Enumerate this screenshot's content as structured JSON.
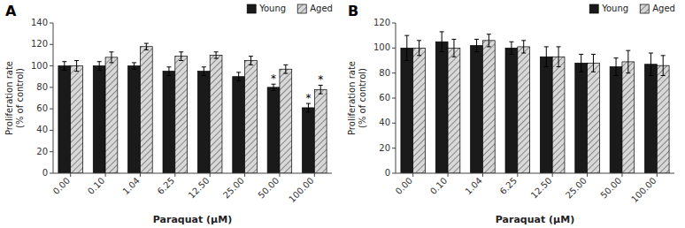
{
  "chart_data": [
    {
      "type": "bar",
      "title": "A",
      "categories": [
        "0.00",
        "0.10",
        "1.04",
        "6.25",
        "12.50",
        "25.00",
        "50.00",
        "100.00"
      ],
      "series": [
        {
          "name": "Young",
          "color": "#1a1a1a",
          "values": [
            100,
            100,
            100,
            95,
            95,
            90,
            80,
            61
          ],
          "errors": [
            4,
            4,
            3,
            4,
            4,
            4,
            3,
            4
          ]
        },
        {
          "name": "Aged",
          "color": "#d8d8d8",
          "values": [
            100,
            108,
            118,
            109,
            110,
            105,
            97,
            78
          ],
          "errors": [
            5,
            5,
            3,
            4,
            3,
            4,
            4,
            4
          ]
        }
      ],
      "ylim": [
        0,
        140
      ],
      "yticks": [
        0,
        20,
        40,
        60,
        80,
        100,
        120,
        140
      ],
      "ylabel": "Proliferation rate\n(% of control)",
      "xlabel": "Paraquat (μM)",
      "annotations": [
        {
          "text": "*",
          "series": "Young",
          "category": "50.00"
        },
        {
          "text": "*",
          "series": "Young",
          "category": "100.00"
        },
        {
          "text": "*",
          "series": "Aged",
          "category": "100.00"
        }
      ],
      "legend": "upper right",
      "grid": false
    },
    {
      "type": "bar",
      "title": "B",
      "categories": [
        "0.00",
        "0.10",
        "1.04",
        "6.25",
        "12.50",
        "25.00",
        "50.00",
        "100.00"
      ],
      "series": [
        {
          "name": "Young",
          "color": "#1a1a1a",
          "values": [
            100,
            105,
            102,
            100,
            93,
            88,
            85,
            87
          ],
          "errors": [
            10,
            8,
            5,
            5,
            8,
            7,
            7,
            9
          ]
        },
        {
          "name": "Aged",
          "color": "#d8d8d8",
          "values": [
            100,
            100,
            106,
            101,
            93,
            88,
            89,
            86
          ],
          "errors": [
            6,
            7,
            5,
            5,
            8,
            7,
            9,
            8
          ]
        }
      ],
      "ylim": [
        0,
        120
      ],
      "yticks": [
        0,
        20,
        40,
        60,
        80,
        100,
        120
      ],
      "ylabel": "Proliferation rate\n(% of control)",
      "xlabel": "Paraquat (μM)",
      "legend": "upper right",
      "grid": false
    }
  ]
}
